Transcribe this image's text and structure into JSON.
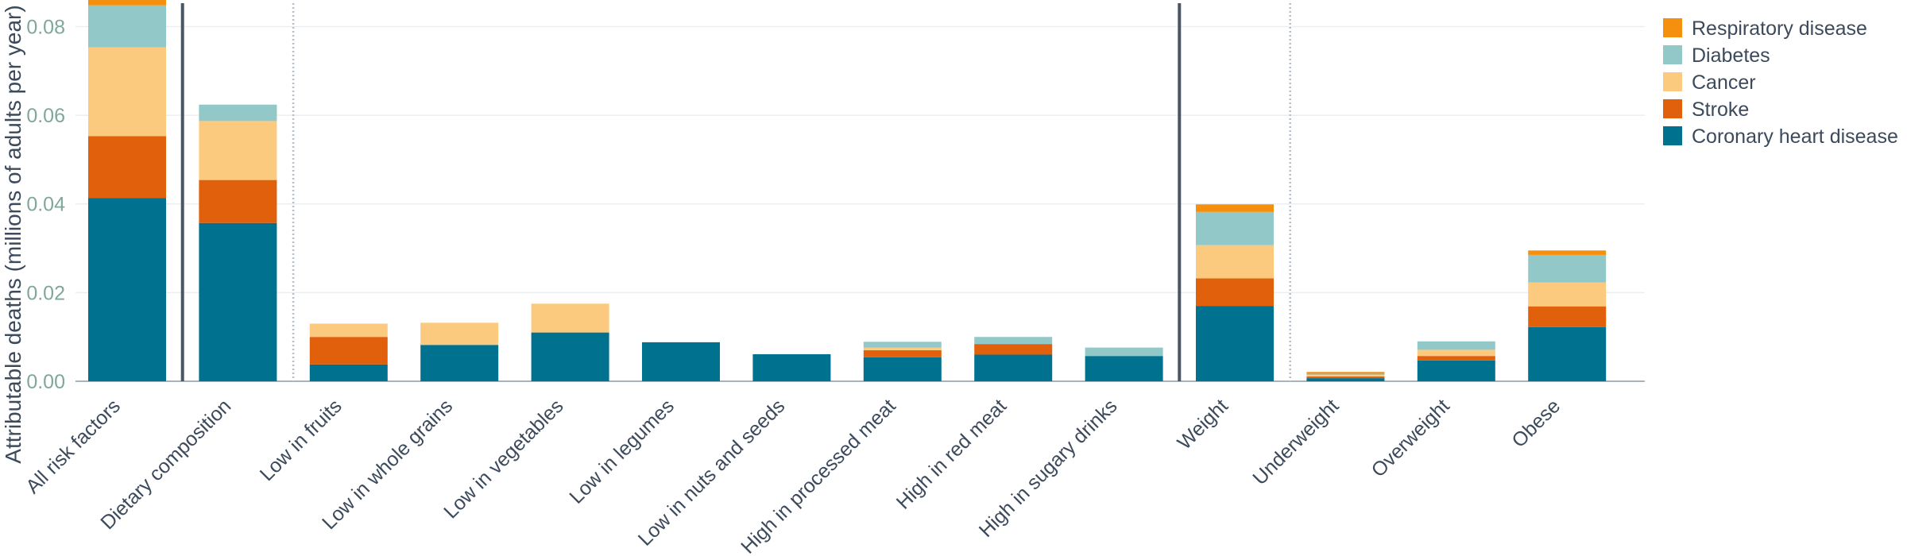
{
  "chart_data": {
    "type": "bar",
    "stacked": true,
    "title": "",
    "xlabel": "",
    "ylabel": "Attributable deaths (millions of adults per year)",
    "ylim": [
      0,
      0.086
    ],
    "yticks": [
      "0.00",
      "0.02",
      "0.04",
      "0.06",
      "0.08"
    ],
    "grid": true,
    "legend_position": "top-right",
    "categories": [
      "All risk factors",
      "Dietary composition",
      "Low in fruits",
      "Low in whole grains",
      "Low in vegetables",
      "Low in legumes",
      "Low in nuts and seeds",
      "High in processed meat",
      "High in red meat",
      "High in sugary drinks",
      "Weight",
      "Underweight",
      "Overweight",
      "Obese"
    ],
    "series": [
      {
        "name": "Coronary heart disease",
        "color": "#00718f",
        "values": [
          0.0413,
          0.0357,
          0.0038,
          0.0082,
          0.011,
          0.0088,
          0.0061,
          0.0054,
          0.006,
          0.0057,
          0.017,
          0.0007,
          0.0047,
          0.0122
        ]
      },
      {
        "name": "Stroke",
        "color": "#e0600c",
        "values": [
          0.014,
          0.0097,
          0.0062,
          0.0,
          0.0,
          0.0,
          0.0,
          0.0016,
          0.0024,
          0.0,
          0.0062,
          0.0004,
          0.001,
          0.0047
        ]
      },
      {
        "name": "Cancer",
        "color": "#fcca7e",
        "values": [
          0.02,
          0.0133,
          0.003,
          0.005,
          0.0065,
          0.0,
          0.0,
          0.0006,
          0.0,
          0.0,
          0.0075,
          0.0003,
          0.0014,
          0.0054
        ]
      },
      {
        "name": "Diabetes",
        "color": "#92c9c8",
        "values": [
          0.0095,
          0.0037,
          0.0,
          0.0,
          0.0,
          0.0,
          0.0,
          0.0013,
          0.0016,
          0.0019,
          0.0075,
          0.0003,
          0.0019,
          0.0062
        ]
      },
      {
        "name": "Respiratory disease",
        "color": "#f4900e",
        "values": [
          0.0012,
          0.0,
          0.0,
          0.0,
          0.0,
          0.0,
          0.0,
          0.0,
          0.0,
          0.0,
          0.0017,
          0.0004,
          0.0,
          0.001
        ]
      }
    ],
    "group_separators": [
      {
        "after": 0,
        "style": "solid"
      },
      {
        "after": 1,
        "style": "dotted"
      },
      {
        "after": 9,
        "style": "solid"
      },
      {
        "after": 10,
        "style": "dotted"
      }
    ]
  }
}
